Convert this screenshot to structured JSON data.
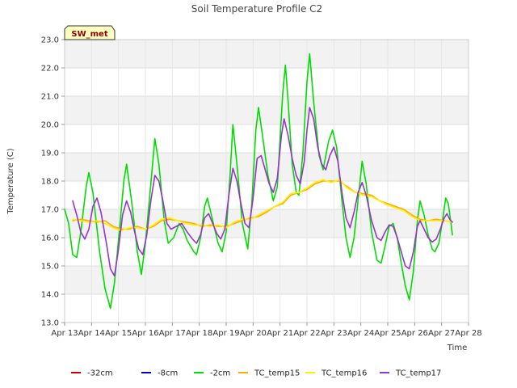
{
  "chart_data": {
    "type": "line",
    "title": "Soil Temperature Profile C2",
    "xlabel": "Time",
    "ylabel": "Temperature (C)",
    "badge": "SW_met",
    "xlim": [
      13,
      28
    ],
    "ylim": [
      13.0,
      23.0
    ],
    "x_ticks": [
      {
        "v": 13,
        "label": "Apr 13"
      },
      {
        "v": 14,
        "label": "Apr 14"
      },
      {
        "v": 15,
        "label": "Apr 15"
      },
      {
        "v": 16,
        "label": "Apr 16"
      },
      {
        "v": 17,
        "label": "Apr 17"
      },
      {
        "v": 18,
        "label": "Apr 18"
      },
      {
        "v": 19,
        "label": "Apr 19"
      },
      {
        "v": 20,
        "label": "Apr 20"
      },
      {
        "v": 21,
        "label": "Apr 21"
      },
      {
        "v": 22,
        "label": "Apr 22"
      },
      {
        "v": 23,
        "label": "Apr 23"
      },
      {
        "v": 24,
        "label": "Apr 24"
      },
      {
        "v": 25,
        "label": "Apr 25"
      },
      {
        "v": 26,
        "label": "Apr 26"
      },
      {
        "v": 27,
        "label": "Apr 27"
      },
      {
        "v": 28,
        "label": "Apr 28"
      }
    ],
    "y_ticks": [
      {
        "v": 13,
        "label": "13.0"
      },
      {
        "v": 14,
        "label": "14.0"
      },
      {
        "v": 15,
        "label": "15.0"
      },
      {
        "v": 16,
        "label": "16.0"
      },
      {
        "v": 17,
        "label": "17.0"
      },
      {
        "v": 18,
        "label": "18.0"
      },
      {
        "v": 19,
        "label": "19.0"
      },
      {
        "v": 20,
        "label": "20.0"
      },
      {
        "v": 21,
        "label": "21.0"
      },
      {
        "v": 22,
        "label": "22.0"
      },
      {
        "v": 23,
        "label": "23.0"
      }
    ],
    "grid": true,
    "legend_position": "bottom",
    "series": [
      {
        "name": "-32cm",
        "color": "#cc0000",
        "points": []
      },
      {
        "name": "-8cm",
        "color": "#0000cc",
        "points": []
      },
      {
        "name": "-2cm",
        "color": "#00dd00",
        "points": [
          [
            13.0,
            17.0
          ],
          [
            13.15,
            16.5
          ],
          [
            13.3,
            15.4
          ],
          [
            13.45,
            15.3
          ],
          [
            13.6,
            16.2
          ],
          [
            13.8,
            17.8
          ],
          [
            13.9,
            18.3
          ],
          [
            14.05,
            17.6
          ],
          [
            14.3,
            15.5
          ],
          [
            14.5,
            14.2
          ],
          [
            14.7,
            13.5
          ],
          [
            14.85,
            14.4
          ],
          [
            15.05,
            16.4
          ],
          [
            15.2,
            18.0
          ],
          [
            15.3,
            18.6
          ],
          [
            15.5,
            17.2
          ],
          [
            15.7,
            15.5
          ],
          [
            15.85,
            14.7
          ],
          [
            16.0,
            15.8
          ],
          [
            16.2,
            17.9
          ],
          [
            16.35,
            19.5
          ],
          [
            16.5,
            18.6
          ],
          [
            16.7,
            16.6
          ],
          [
            16.85,
            15.8
          ],
          [
            17.05,
            16.0
          ],
          [
            17.25,
            16.5
          ],
          [
            17.4,
            16.3
          ],
          [
            17.55,
            15.9
          ],
          [
            17.8,
            15.5
          ],
          [
            17.9,
            15.4
          ],
          [
            18.05,
            16.0
          ],
          [
            18.2,
            17.1
          ],
          [
            18.3,
            17.4
          ],
          [
            18.5,
            16.6
          ],
          [
            18.7,
            15.8
          ],
          [
            18.85,
            15.5
          ],
          [
            19.0,
            16.2
          ],
          [
            19.15,
            18.3
          ],
          [
            19.25,
            20.0
          ],
          [
            19.4,
            18.6
          ],
          [
            19.6,
            16.5
          ],
          [
            19.8,
            15.6
          ],
          [
            19.95,
            17.2
          ],
          [
            20.1,
            19.8
          ],
          [
            20.2,
            20.6
          ],
          [
            20.35,
            19.6
          ],
          [
            20.55,
            18.2
          ],
          [
            20.75,
            17.3
          ],
          [
            20.9,
            17.8
          ],
          [
            21.0,
            19.5
          ],
          [
            21.1,
            21.1
          ],
          [
            21.2,
            22.1
          ],
          [
            21.3,
            20.8
          ],
          [
            21.45,
            18.6
          ],
          [
            21.6,
            17.6
          ],
          [
            21.7,
            17.5
          ],
          [
            21.85,
            19.0
          ],
          [
            22.0,
            21.5
          ],
          [
            22.1,
            22.5
          ],
          [
            22.25,
            20.8
          ],
          [
            22.45,
            18.9
          ],
          [
            22.6,
            18.4
          ],
          [
            22.8,
            19.4
          ],
          [
            22.95,
            19.8
          ],
          [
            23.1,
            19.2
          ],
          [
            23.3,
            17.3
          ],
          [
            23.45,
            16.0
          ],
          [
            23.6,
            15.3
          ],
          [
            23.75,
            16.0
          ],
          [
            23.95,
            17.8
          ],
          [
            24.05,
            18.7
          ],
          [
            24.2,
            17.9
          ],
          [
            24.4,
            16.2
          ],
          [
            24.6,
            15.2
          ],
          [
            24.75,
            15.1
          ],
          [
            24.9,
            15.7
          ],
          [
            25.05,
            16.4
          ],
          [
            25.2,
            16.5
          ],
          [
            25.35,
            16.0
          ],
          [
            25.5,
            15.1
          ],
          [
            25.65,
            14.3
          ],
          [
            25.8,
            13.8
          ],
          [
            25.95,
            14.8
          ],
          [
            26.1,
            16.6
          ],
          [
            26.2,
            17.3
          ],
          [
            26.35,
            16.8
          ],
          [
            26.5,
            16.1
          ],
          [
            26.65,
            15.6
          ],
          [
            26.75,
            15.5
          ],
          [
            26.9,
            15.8
          ],
          [
            27.05,
            16.7
          ],
          [
            27.15,
            17.4
          ],
          [
            27.25,
            17.2
          ],
          [
            27.35,
            16.5
          ],
          [
            27.4,
            16.1
          ]
        ]
      },
      {
        "name": "TC_temp15",
        "color": "#ffaa00",
        "points": [
          [
            13.3,
            16.6
          ],
          [
            13.6,
            16.65
          ],
          [
            13.9,
            16.6
          ],
          [
            14.2,
            16.55
          ],
          [
            14.5,
            16.6
          ],
          [
            14.8,
            16.4
          ],
          [
            15.1,
            16.3
          ],
          [
            15.4,
            16.3
          ],
          [
            15.7,
            16.4
          ],
          [
            16.0,
            16.3
          ],
          [
            16.3,
            16.4
          ],
          [
            16.6,
            16.6
          ],
          [
            16.9,
            16.65
          ],
          [
            17.2,
            16.6
          ],
          [
            17.5,
            16.55
          ],
          [
            17.8,
            16.5
          ],
          [
            18.1,
            16.4
          ],
          [
            18.4,
            16.45
          ],
          [
            18.7,
            16.4
          ],
          [
            19.0,
            16.4
          ],
          [
            19.3,
            16.5
          ],
          [
            19.6,
            16.6
          ],
          [
            19.9,
            16.7
          ],
          [
            20.2,
            16.75
          ],
          [
            20.5,
            16.9
          ],
          [
            20.8,
            17.1
          ],
          [
            21.1,
            17.2
          ],
          [
            21.4,
            17.5
          ],
          [
            21.7,
            17.6
          ],
          [
            22.0,
            17.7
          ],
          [
            22.3,
            17.9
          ],
          [
            22.6,
            18.0
          ],
          [
            22.9,
            18.0
          ],
          [
            23.2,
            18.0
          ],
          [
            23.5,
            17.8
          ],
          [
            23.8,
            17.6
          ],
          [
            24.1,
            17.55
          ],
          [
            24.4,
            17.5
          ],
          [
            24.7,
            17.3
          ],
          [
            25.0,
            17.2
          ],
          [
            25.3,
            17.1
          ],
          [
            25.6,
            17.0
          ],
          [
            25.9,
            16.8
          ],
          [
            26.2,
            16.65
          ],
          [
            26.5,
            16.6
          ],
          [
            26.8,
            16.65
          ],
          [
            27.1,
            16.6
          ],
          [
            27.4,
            16.55
          ]
        ]
      },
      {
        "name": "TC_temp16",
        "color": "#ffee00",
        "points": [
          [
            13.3,
            16.65
          ],
          [
            13.6,
            16.6
          ],
          [
            13.9,
            16.55
          ],
          [
            14.2,
            16.6
          ],
          [
            14.5,
            16.5
          ],
          [
            14.8,
            16.35
          ],
          [
            15.1,
            16.25
          ],
          [
            15.4,
            16.35
          ],
          [
            15.7,
            16.35
          ],
          [
            16.0,
            16.3
          ],
          [
            16.3,
            16.45
          ],
          [
            16.6,
            16.65
          ],
          [
            16.9,
            16.7
          ],
          [
            17.2,
            16.6
          ],
          [
            17.5,
            16.5
          ],
          [
            17.8,
            16.45
          ],
          [
            18.1,
            16.45
          ],
          [
            18.4,
            16.4
          ],
          [
            18.7,
            16.45
          ],
          [
            19.0,
            16.35
          ],
          [
            19.3,
            16.55
          ],
          [
            19.6,
            16.65
          ],
          [
            19.9,
            16.65
          ],
          [
            20.2,
            16.8
          ],
          [
            20.5,
            16.95
          ],
          [
            20.8,
            17.1
          ],
          [
            21.1,
            17.25
          ],
          [
            21.4,
            17.55
          ],
          [
            21.7,
            17.6
          ],
          [
            22.0,
            17.75
          ],
          [
            22.3,
            17.95
          ],
          [
            22.6,
            18.05
          ],
          [
            22.9,
            17.95
          ],
          [
            23.2,
            18.05
          ],
          [
            23.5,
            17.75
          ],
          [
            23.8,
            17.6
          ],
          [
            24.1,
            17.5
          ],
          [
            24.4,
            17.45
          ],
          [
            24.7,
            17.3
          ],
          [
            25.0,
            17.15
          ],
          [
            25.3,
            17.05
          ],
          [
            25.6,
            16.95
          ],
          [
            25.9,
            16.75
          ],
          [
            26.2,
            16.6
          ],
          [
            26.5,
            16.6
          ],
          [
            26.8,
            16.6
          ],
          [
            27.1,
            16.6
          ],
          [
            27.4,
            16.55
          ]
        ]
      },
      {
        "name": "TC_temp17",
        "color": "#9933cc",
        "points": [
          [
            13.3,
            17.3
          ],
          [
            13.45,
            16.8
          ],
          [
            13.6,
            16.2
          ],
          [
            13.75,
            15.95
          ],
          [
            13.9,
            16.3
          ],
          [
            14.05,
            17.1
          ],
          [
            14.2,
            17.4
          ],
          [
            14.35,
            16.9
          ],
          [
            14.55,
            15.8
          ],
          [
            14.7,
            14.9
          ],
          [
            14.85,
            14.65
          ],
          [
            15.0,
            15.6
          ],
          [
            15.15,
            16.8
          ],
          [
            15.3,
            17.3
          ],
          [
            15.45,
            16.9
          ],
          [
            15.6,
            16.2
          ],
          [
            15.75,
            15.6
          ],
          [
            15.9,
            15.4
          ],
          [
            16.05,
            16.1
          ],
          [
            16.2,
            17.3
          ],
          [
            16.35,
            18.2
          ],
          [
            16.5,
            18.0
          ],
          [
            16.65,
            17.3
          ],
          [
            16.8,
            16.5
          ],
          [
            16.95,
            16.3
          ],
          [
            17.15,
            16.4
          ],
          [
            17.35,
            16.5
          ],
          [
            17.55,
            16.2
          ],
          [
            17.75,
            15.95
          ],
          [
            17.9,
            15.8
          ],
          [
            18.05,
            16.1
          ],
          [
            18.2,
            16.7
          ],
          [
            18.35,
            16.85
          ],
          [
            18.5,
            16.5
          ],
          [
            18.65,
            16.15
          ],
          [
            18.8,
            15.95
          ],
          [
            18.95,
            16.3
          ],
          [
            19.1,
            17.5
          ],
          [
            19.25,
            18.45
          ],
          [
            19.4,
            18.0
          ],
          [
            19.55,
            17.2
          ],
          [
            19.7,
            16.5
          ],
          [
            19.85,
            16.35
          ],
          [
            20.0,
            17.4
          ],
          [
            20.15,
            18.8
          ],
          [
            20.3,
            18.9
          ],
          [
            20.45,
            18.4
          ],
          [
            20.6,
            17.9
          ],
          [
            20.75,
            17.6
          ],
          [
            20.9,
            18.1
          ],
          [
            21.05,
            19.6
          ],
          [
            21.15,
            20.2
          ],
          [
            21.3,
            19.6
          ],
          [
            21.45,
            18.8
          ],
          [
            21.6,
            18.2
          ],
          [
            21.75,
            17.9
          ],
          [
            21.9,
            18.7
          ],
          [
            22.0,
            19.8
          ],
          [
            22.1,
            20.6
          ],
          [
            22.25,
            20.2
          ],
          [
            22.4,
            19.2
          ],
          [
            22.55,
            18.6
          ],
          [
            22.7,
            18.4
          ],
          [
            22.85,
            18.9
          ],
          [
            23.0,
            19.2
          ],
          [
            23.15,
            18.7
          ],
          [
            23.3,
            17.6
          ],
          [
            23.45,
            16.7
          ],
          [
            23.6,
            16.35
          ],
          [
            23.75,
            16.9
          ],
          [
            23.9,
            17.6
          ],
          [
            24.05,
            17.95
          ],
          [
            24.2,
            17.5
          ],
          [
            24.4,
            16.6
          ],
          [
            24.6,
            16.0
          ],
          [
            24.75,
            15.9
          ],
          [
            24.9,
            16.2
          ],
          [
            25.05,
            16.45
          ],
          [
            25.2,
            16.4
          ],
          [
            25.35,
            16.0
          ],
          [
            25.5,
            15.5
          ],
          [
            25.65,
            15.0
          ],
          [
            25.8,
            14.9
          ],
          [
            25.95,
            15.5
          ],
          [
            26.1,
            16.4
          ],
          [
            26.2,
            16.6
          ],
          [
            26.35,
            16.3
          ],
          [
            26.5,
            16.0
          ],
          [
            26.65,
            15.85
          ],
          [
            26.8,
            15.95
          ],
          [
            26.95,
            16.3
          ],
          [
            27.1,
            16.7
          ],
          [
            27.2,
            16.85
          ],
          [
            27.3,
            16.65
          ],
          [
            27.4,
            16.55
          ]
        ]
      }
    ]
  }
}
